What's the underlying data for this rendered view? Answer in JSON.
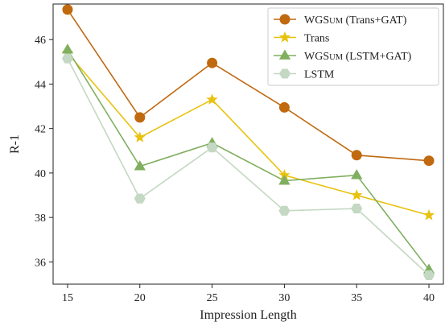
{
  "chart_data": {
    "type": "line",
    "xlabel": "Impression Length",
    "ylabel": "R-1",
    "x": [
      15,
      20,
      25,
      30,
      35,
      40
    ],
    "xlim": [
      14,
      41
    ],
    "ylim": [
      35.0,
      47.6
    ],
    "yticks": [
      36,
      38,
      40,
      42,
      44,
      46
    ],
    "grid": false,
    "legend_position": "top-right",
    "series": [
      {
        "name": "WGSUM (Trans+GAT)",
        "name_main": "WGS",
        "name_small": "UM",
        "name_rest": " (Trans+GAT)",
        "marker": "circle",
        "color": "#C0690F",
        "values": [
          47.35,
          42.5,
          44.95,
          42.95,
          40.8,
          40.55
        ]
      },
      {
        "name": "Trans",
        "name_main": "Trans",
        "name_small": "",
        "name_rest": "",
        "marker": "star",
        "color": "#E8C20E",
        "values": [
          45.4,
          41.6,
          43.3,
          39.9,
          39.0,
          38.1
        ]
      },
      {
        "name": "WGSUM (LSTM+GAT)",
        "name_main": "WGS",
        "name_small": "UM",
        "name_rest": " (LSTM+GAT)",
        "marker": "triangle",
        "color": "#7FAF5F",
        "values": [
          45.55,
          40.3,
          41.35,
          39.65,
          39.9,
          35.65
        ]
      },
      {
        "name": "LSTM",
        "name_main": "LSTM",
        "name_small": "",
        "name_rest": "",
        "marker": "hexagon",
        "color": "#C4D8C3",
        "values": [
          45.15,
          38.85,
          41.15,
          38.3,
          38.4,
          35.4
        ]
      }
    ]
  }
}
